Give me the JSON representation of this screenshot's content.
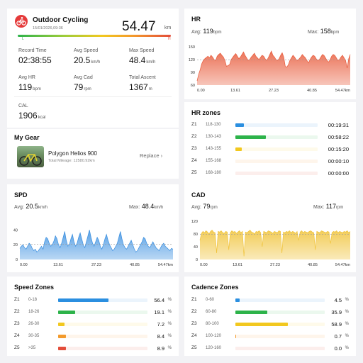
{
  "summary": {
    "title": "Outdoor Cycling",
    "datetime": "15/01/2026,09:36",
    "distance": "54.47",
    "distance_unit": "km",
    "stats": [
      {
        "label": "Record Time",
        "value": "02:38:55",
        "unit": ""
      },
      {
        "label": "Avg Speed",
        "value": "20.5",
        "unit": "km/h"
      },
      {
        "label": "Max Speed",
        "value": "48.4",
        "unit": "km/h"
      },
      {
        "label": "Avg HR",
        "value": "119",
        "unit": "bpm"
      },
      {
        "label": "Avg Cad",
        "value": "79",
        "unit": "rpm"
      },
      {
        "label": "Total Ascent",
        "value": "1367",
        "unit": "m"
      },
      {
        "label": "CAL",
        "value": "1906",
        "unit": "kcal"
      }
    ],
    "bar_left_label": "L",
    "bar_right_label": "H",
    "colors": {
      "accent": "#e53a3a"
    }
  },
  "gear": {
    "title": "My Gear",
    "name": "Polygon Helios 900",
    "mileage": "Total Mileage: 12580.92km",
    "replace_label": "Replace"
  },
  "hr": {
    "title": "HR",
    "avg_label": "Avg:",
    "avg_value": "119",
    "avg_unit": "bpm",
    "max_label": "Max:",
    "max_value": "158",
    "max_unit": "bpm",
    "color": "#e85a3a"
  },
  "hr_zones": {
    "title": "HR zones",
    "zones": [
      {
        "name": "Z1",
        "range": "118-130",
        "value": "00:19:31",
        "fraction": 0.1,
        "color": "#2b8fe0"
      },
      {
        "name": "Z2",
        "range": "130-143",
        "value": "00:58:22",
        "fraction": 0.37,
        "color": "#2db34a"
      },
      {
        "name": "Z3",
        "range": "143-155",
        "value": "00:15:20",
        "fraction": 0.08,
        "color": "#f2c81f"
      },
      {
        "name": "Z4",
        "range": "155-168",
        "value": "00:00:10",
        "fraction": 0.0,
        "color": "#f39a2c"
      },
      {
        "name": "Z5",
        "range": "168-180",
        "value": "00:00:00",
        "fraction": 0.0,
        "color": "#e34d3a"
      }
    ]
  },
  "spd": {
    "title": "SPD",
    "avg_label": "Avg:",
    "avg_value": "20.5",
    "avg_unit": "km/h",
    "max_label": "Max:",
    "max_value": "48.4",
    "max_unit": "km/h",
    "color": "#3a8fe0"
  },
  "cad": {
    "title": "CAD",
    "avg_label": "Avg:",
    "avg_value": "79",
    "avg_unit": "rpm",
    "max_label": "Max:",
    "max_value": "117",
    "max_unit": "rpm",
    "color": "#f0c33a"
  },
  "speed_zones": {
    "title": "Speed Zones",
    "zones": [
      {
        "name": "Z1",
        "range": "0-18",
        "value": "56.4",
        "fraction": 0.564,
        "color": "#2b8fe0"
      },
      {
        "name": "Z2",
        "range": "18-26",
        "value": "19.1",
        "fraction": 0.191,
        "color": "#2db34a"
      },
      {
        "name": "Z3",
        "range": "26-30",
        "value": "7.2",
        "fraction": 0.072,
        "color": "#f2c81f"
      },
      {
        "name": "Z4",
        "range": "30-35",
        "value": "8.4",
        "fraction": 0.084,
        "color": "#f39a2c"
      },
      {
        "name": "Z5",
        "range": ">35",
        "value": "8.9",
        "fraction": 0.089,
        "color": "#e34d3a"
      }
    ],
    "unit": "%"
  },
  "cadence_zones": {
    "title": "Cadence Zones",
    "zones": [
      {
        "name": "Z1",
        "range": "0-60",
        "value": "4.5",
        "fraction": 0.045,
        "color": "#2b8fe0"
      },
      {
        "name": "Z2",
        "range": "60-80",
        "value": "35.9",
        "fraction": 0.359,
        "color": "#2db34a"
      },
      {
        "name": "Z3",
        "range": "80-100",
        "value": "58.9",
        "fraction": 0.589,
        "color": "#f2c81f"
      },
      {
        "name": "Z4",
        "range": "100-120",
        "value": "0.7",
        "fraction": 0.007,
        "color": "#f39a2c"
      },
      {
        "name": "Z5",
        "range": "120-160",
        "value": "0.0",
        "fraction": 0.0,
        "color": "#e34d3a"
      }
    ],
    "unit": "%"
  },
  "chart_data": [
    {
      "type": "area",
      "title": "HR",
      "x_ticks": [
        "0.00",
        "13.61",
        "27.23",
        "40.85",
        "54.47km"
      ],
      "y_ticks": [
        "150",
        "120",
        "90",
        "60"
      ],
      "ylim": [
        60,
        160
      ],
      "xlim": [
        0,
        54.47
      ],
      "reference_line": 119,
      "values": [
        70,
        85,
        96,
        110,
        118,
        122,
        125,
        128,
        124,
        130,
        126,
        120,
        118,
        128,
        132,
        135,
        130,
        126,
        118,
        104,
        106,
        108,
        120,
        125,
        130,
        134,
        128,
        122,
        126,
        132,
        138,
        130,
        124,
        118,
        120,
        126,
        130,
        135,
        128,
        124,
        120,
        125,
        130,
        128,
        122,
        118,
        124,
        132,
        140,
        130,
        126,
        120,
        118,
        122,
        130,
        136,
        126,
        104,
        102,
        108,
        118,
        124,
        130,
        126,
        120,
        118,
        122,
        126,
        132,
        128,
        124,
        118,
        112,
        120,
        126,
        130,
        128,
        122,
        118,
        120,
        126,
        132,
        130,
        124,
        118,
        114,
        120,
        128,
        132,
        130,
        124,
        118,
        120,
        126,
        130,
        124,
        118,
        100,
        122,
        132
      ]
    },
    {
      "type": "area",
      "title": "SPD",
      "x_ticks": [
        "0.00",
        "13.61",
        "27.23",
        "40.85",
        "54.47km"
      ],
      "y_ticks": [
        "40",
        "20",
        "0"
      ],
      "ylim": [
        0,
        48
      ],
      "xlim": [
        0,
        54.47
      ],
      "reference_line": 20.5,
      "values": [
        15,
        18,
        20,
        16,
        14,
        18,
        22,
        20,
        15,
        12,
        14,
        10,
        12,
        15,
        18,
        14,
        24,
        30,
        28,
        22,
        18,
        20,
        25,
        32,
        28,
        20,
        16,
        22,
        30,
        38,
        26,
        18,
        20,
        28,
        34,
        24,
        18,
        22,
        30,
        36,
        28,
        20,
        16,
        24,
        32,
        40,
        30,
        22,
        18,
        24,
        30,
        26,
        18,
        14,
        20,
        28,
        34,
        26,
        20,
        16,
        12,
        14,
        18,
        22,
        30,
        38,
        28,
        20,
        16,
        14,
        18,
        22,
        26,
        20,
        14,
        10,
        12,
        16,
        20,
        24,
        30,
        28,
        22,
        18,
        16,
        20,
        24,
        20,
        16,
        14,
        12,
        16,
        20,
        22,
        18,
        16,
        14,
        12,
        15,
        14
      ]
    },
    {
      "type": "area",
      "title": "CAD",
      "x_ticks": [
        "0.00",
        "13.61",
        "27.23",
        "40.85",
        "54.47km"
      ],
      "y_ticks": [
        "120",
        "80",
        "40",
        "0"
      ],
      "ylim": [
        0,
        120
      ],
      "xlim": [
        0,
        54.47
      ],
      "reference_line": 79,
      "values": [
        60,
        82,
        88,
        84,
        90,
        86,
        80,
        88,
        92,
        86,
        84,
        20,
        88,
        86,
        90,
        84,
        82,
        88,
        86,
        30,
        84,
        90,
        86,
        88,
        82,
        86,
        90,
        84,
        88,
        10,
        86,
        84,
        88,
        92,
        86,
        84,
        80,
        88,
        86,
        90,
        84,
        40,
        88,
        86,
        84,
        90,
        88,
        86,
        82,
        88,
        86,
        84,
        90,
        88,
        20,
        86,
        84,
        88,
        86,
        90,
        84,
        88,
        86,
        82,
        88,
        60,
        86,
        90,
        84,
        88,
        86,
        84,
        88,
        90,
        86,
        84,
        30,
        88,
        86,
        84,
        90,
        88,
        86,
        84,
        88,
        86,
        50,
        84,
        88,
        86,
        90,
        84,
        88,
        86,
        84,
        88,
        86,
        90,
        84,
        88
      ]
    }
  ]
}
